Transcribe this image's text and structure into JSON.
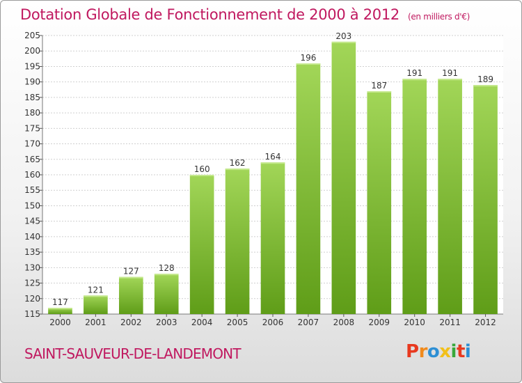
{
  "header": {
    "title": "Dotation Globale de Fonctionnement de 2000 à 2012",
    "subtitle": "(en milliers d'€)"
  },
  "footer": {
    "commune": "SAINT-SAUVEUR-DE-LANDEMONT",
    "logo_letters": [
      "P",
      "r",
      "o",
      "x",
      "i",
      "t",
      "i"
    ],
    "logo_colors": [
      "#e8391f",
      "#f08a1c",
      "#2d8fd4",
      "#f2c01a",
      "#38a83a",
      "#e8391f",
      "#2d8fd4"
    ]
  },
  "colors": {
    "title": "#c0185f",
    "bar_top": "#a2d658",
    "bar_bottom": "#5f9d18",
    "grid": "#cfcfcf"
  },
  "chart_data": {
    "type": "bar",
    "title": "Dotation Globale de Fonctionnement de 2000 à 2012",
    "subtitle": "(en milliers d'€)",
    "categories": [
      "2000",
      "2001",
      "2002",
      "2003",
      "2004",
      "2005",
      "2006",
      "2007",
      "2008",
      "2009",
      "2010",
      "2011",
      "2012"
    ],
    "values": [
      117,
      121,
      127,
      128,
      160,
      162,
      164,
      196,
      203,
      187,
      191,
      191,
      189
    ],
    "ylim": [
      115,
      205
    ],
    "yticks": [
      115,
      120,
      125,
      130,
      135,
      140,
      145,
      150,
      155,
      160,
      165,
      170,
      175,
      180,
      185,
      190,
      195,
      200,
      205
    ],
    "xlabel": "",
    "ylabel": "",
    "grid": true,
    "data_labels": true
  }
}
